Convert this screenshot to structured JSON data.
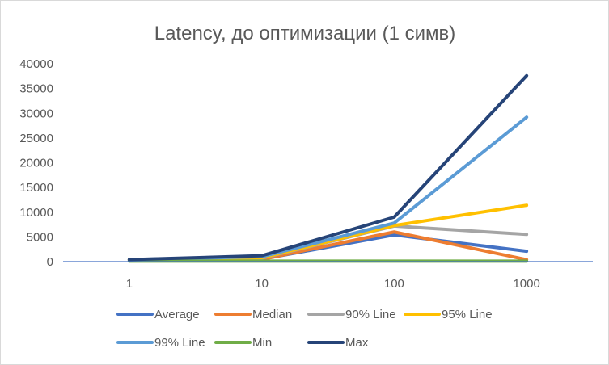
{
  "chart_data": {
    "type": "line",
    "title": "Latency, до оптимизации (1 симв)",
    "xlabel": "",
    "ylabel": "",
    "categories": [
      "1",
      "10",
      "100",
      "1000"
    ],
    "ylim": [
      0,
      40000
    ],
    "yticks": [
      0,
      5000,
      10000,
      15000,
      20000,
      25000,
      30000,
      35000,
      40000
    ],
    "ytick_labels": [
      "0",
      "5000",
      "10000",
      "15000",
      "20000",
      "25000",
      "30000",
      "35000",
      "40000"
    ],
    "grid": false,
    "legend_position": "bottom",
    "series": [
      {
        "name": "Average",
        "color": "#4472c4",
        "values": [
          300,
          500,
          5400,
          2100
        ]
      },
      {
        "name": "Median",
        "color": "#ed7d31",
        "values": [
          300,
          450,
          6000,
          400
        ]
      },
      {
        "name": "90% Line",
        "color": "#a5a5a5",
        "values": [
          400,
          700,
          7200,
          5500
        ]
      },
      {
        "name": "95% Line",
        "color": "#ffc000",
        "values": [
          400,
          800,
          7300,
          11400
        ]
      },
      {
        "name": "99% Line",
        "color": "#5b9bd5",
        "values": [
          400,
          1000,
          7800,
          29200
        ]
      },
      {
        "name": "Min",
        "color": "#70ad47",
        "values": [
          100,
          100,
          100,
          100
        ]
      },
      {
        "name": "Max",
        "color": "#264478",
        "values": [
          400,
          1200,
          9000,
          37600
        ]
      }
    ]
  }
}
